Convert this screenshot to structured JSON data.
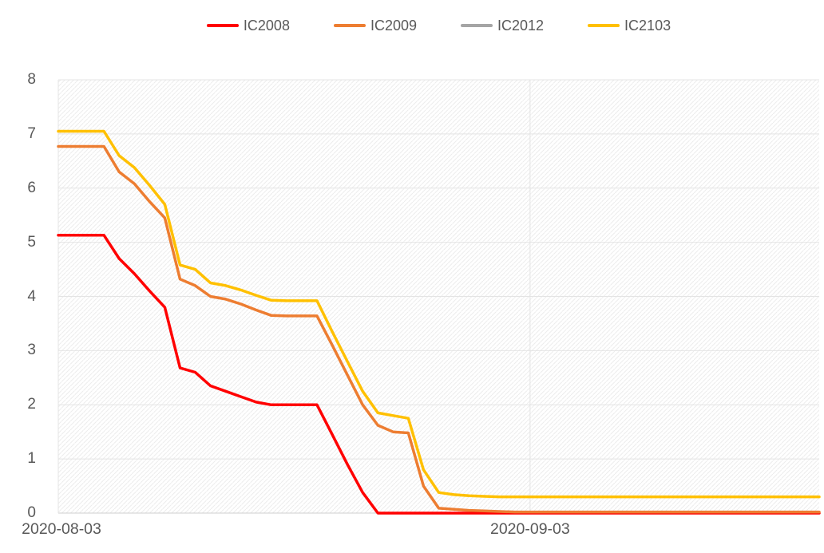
{
  "chart_data": {
    "type": "line",
    "title": "",
    "legend": {
      "position": "top-center",
      "entries": [
        "IC2008",
        "IC2009",
        "IC2012",
        "IC2103"
      ]
    },
    "x_axis": {
      "type": "category-daily-dates",
      "num_points": 51,
      "visible_tick_labels": [
        {
          "label": "2020-08-03",
          "index": 0
        },
        {
          "label": "2020-09-03",
          "index": 31
        }
      ]
    },
    "y_axis": {
      "min": 0,
      "max": 8,
      "tick_interval": 1,
      "tick_labels": [
        "0",
        "1",
        "2",
        "3",
        "4",
        "5",
        "6",
        "7",
        "8"
      ]
    },
    "grid": {
      "horizontal_gridlines": true,
      "vertical_gridlines_at_ticks": true,
      "plot_background": "light-diagonal-hatch"
    },
    "series": [
      {
        "name": "IC2008",
        "color": "#ff0000",
        "values": [
          5.13,
          5.13,
          5.13,
          5.13,
          4.7,
          4.42,
          4.1,
          3.8,
          2.68,
          2.6,
          2.35,
          2.25,
          2.15,
          2.05,
          2,
          2,
          2,
          2,
          1.45,
          0.9,
          0.38,
          0,
          0,
          0,
          0,
          0,
          0,
          0,
          0,
          0,
          0,
          0,
          0,
          0,
          0,
          0,
          0,
          0,
          0,
          0,
          0,
          0,
          0,
          0,
          0,
          0,
          0,
          0,
          0,
          0,
          0
        ]
      },
      {
        "name": "IC2009",
        "color": "#ed7d31",
        "values": [
          6.77,
          6.77,
          6.77,
          6.77,
          6.3,
          6.08,
          5.75,
          5.45,
          4.32,
          4.2,
          4,
          3.95,
          3.86,
          3.75,
          3.65,
          3.64,
          3.64,
          3.64,
          3.1,
          2.55,
          2,
          1.62,
          1.5,
          1.48,
          0.5,
          0.09,
          0.07,
          0.05,
          0.04,
          0.03,
          0.02,
          0.02,
          0.02,
          0.02,
          0.02,
          0.02,
          0.02,
          0.02,
          0.02,
          0.02,
          0.02,
          0.02,
          0.02,
          0.02,
          0.02,
          0.02,
          0.02,
          0.02,
          0.02,
          0.02,
          0.02
        ]
      },
      {
        "name": "IC2012",
        "color": "#a5a5a5",
        "values": [],
        "note": "legend entry only; no line visible in plot area"
      },
      {
        "name": "IC2103",
        "color": "#ffc000",
        "values": [
          7.05,
          7.05,
          7.05,
          7.05,
          6.6,
          6.38,
          6.05,
          5.7,
          4.58,
          4.5,
          4.25,
          4.2,
          4.12,
          4.02,
          3.93,
          3.92,
          3.92,
          3.92,
          3.35,
          2.8,
          2.25,
          1.85,
          1.8,
          1.75,
          0.8,
          0.38,
          0.34,
          0.32,
          0.31,
          0.3,
          0.3,
          0.3,
          0.3,
          0.3,
          0.3,
          0.3,
          0.3,
          0.3,
          0.3,
          0.3,
          0.3,
          0.3,
          0.3,
          0.3,
          0.3,
          0.3,
          0.3,
          0.3,
          0.3,
          0.3,
          0.3
        ]
      }
    ],
    "style": {
      "line_width": 3.5,
      "gridline_color": "#e4e4e4",
      "axis_line_color": "#cfcfcf",
      "hatch_color": "#ececec",
      "label_color": "#595959"
    }
  }
}
